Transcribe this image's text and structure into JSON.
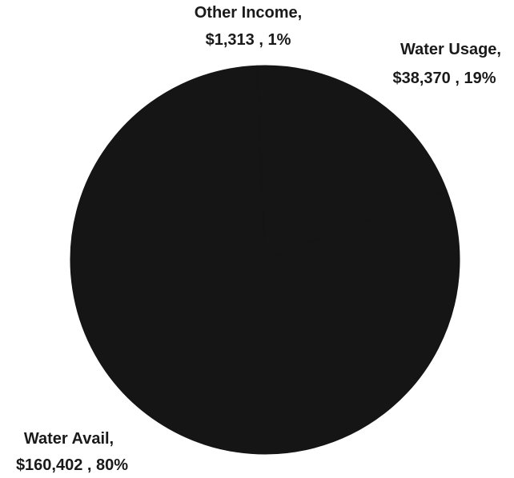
{
  "chart_data": {
    "type": "pie",
    "colors": {
      "slice": "#151515",
      "label": "#1a1a1a"
    },
    "slices": [
      {
        "category": "Water Avail,",
        "value": 160402,
        "value_text": "$160,402 , 80%",
        "percent": 80
      },
      {
        "category": "Water Usage,",
        "value": 38370,
        "value_text": "$38,370 , 19%",
        "percent": 19
      },
      {
        "category": "Other Income,",
        "value": 1313,
        "value_text": "$1,313 , 1%",
        "percent": 1
      }
    ]
  }
}
